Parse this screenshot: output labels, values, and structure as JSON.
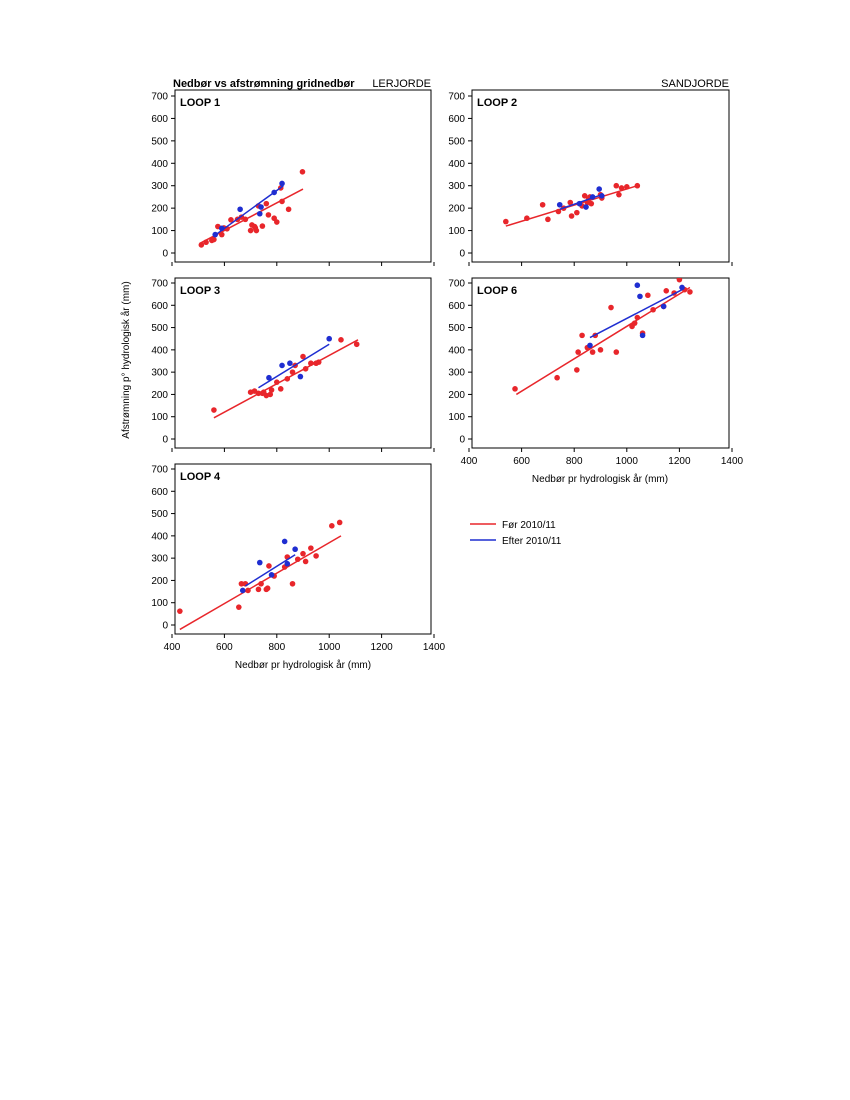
{
  "figure": {
    "title": "Nedbør vs afstrømning gridnedbør",
    "left_header": "LERJORDE",
    "right_header": "SANDJORDE",
    "ylabel": "Afstrømning p° hydrologisk år (mm)",
    "xlabel": "Nedbør pr hydrologisk år (mm)"
  },
  "legend": {
    "before": "Før 2010/11",
    "after": "Efter 2010/11"
  },
  "colors": {
    "before": "#e8262b",
    "after": "#1f2ed1"
  },
  "chart_data": [
    {
      "type": "scatter",
      "title": "LOOP 1",
      "xlim": [
        400,
        1400
      ],
      "ylim": [
        0,
        700
      ],
      "xticks": [
        400,
        600,
        800,
        1000,
        1200,
        1400
      ],
      "yticks": [
        0,
        100,
        200,
        300,
        400,
        500,
        600,
        700
      ],
      "show_xticklabels": false,
      "series": [
        {
          "name": "Før 2010/11",
          "points": [
            [
              512,
              36
            ],
            [
              530,
              48
            ],
            [
              552,
              56
            ],
            [
              560,
              60
            ],
            [
              575,
              118
            ],
            [
              590,
              82
            ],
            [
              598,
              112
            ],
            [
              610,
              108
            ],
            [
              625,
              148
            ],
            [
              650,
              150
            ],
            [
              665,
              160
            ],
            [
              680,
              150
            ],
            [
              700,
              100
            ],
            [
              705,
              125
            ],
            [
              715,
              118
            ],
            [
              718,
              112
            ],
            [
              722,
              100
            ],
            [
              730,
              210
            ],
            [
              745,
              120
            ],
            [
              760,
              220
            ],
            [
              768,
              170
            ],
            [
              790,
              155
            ],
            [
              800,
              138
            ],
            [
              815,
              290
            ],
            [
              820,
              230
            ],
            [
              845,
              195
            ],
            [
              898,
              362
            ]
          ],
          "fit": [
            [
              505,
              42
            ],
            [
              900,
              285
            ]
          ]
        },
        {
          "name": "Efter 2010/11",
          "points": [
            [
              565,
              82
            ],
            [
              590,
              110
            ],
            [
              660,
              195
            ],
            [
              735,
              175
            ],
            [
              740,
              205
            ],
            [
              790,
              270
            ],
            [
              820,
              310
            ]
          ],
          "fit": [
            [
              565,
              80
            ],
            [
              825,
              300
            ]
          ]
        }
      ]
    },
    {
      "type": "scatter",
      "title": "LOOP 2",
      "xlim": [
        400,
        1400
      ],
      "ylim": [
        0,
        700
      ],
      "xticks": [
        400,
        600,
        800,
        1000,
        1200,
        1400
      ],
      "yticks": [
        0,
        100,
        200,
        300,
        400,
        500,
        600,
        700
      ],
      "show_xticklabels": false,
      "series": [
        {
          "name": "Før 2010/11",
          "points": [
            [
              540,
              140
            ],
            [
              620,
              155
            ],
            [
              680,
              215
            ],
            [
              700,
              150
            ],
            [
              740,
              185
            ],
            [
              760,
              200
            ],
            [
              785,
              225
            ],
            [
              790,
              165
            ],
            [
              810,
              180
            ],
            [
              830,
              210
            ],
            [
              840,
              255
            ],
            [
              850,
              225
            ],
            [
              855,
              240
            ],
            [
              860,
              250
            ],
            [
              865,
              220
            ],
            [
              900,
              260
            ],
            [
              905,
              245
            ],
            [
              960,
              300
            ],
            [
              970,
              260
            ],
            [
              980,
              290
            ],
            [
              1000,
              295
            ],
            [
              1040,
              300
            ]
          ],
          "fit": [
            [
              540,
              120
            ],
            [
              1040,
              300
            ]
          ]
        },
        {
          "name": "Efter 2010/11",
          "points": [
            [
              745,
              215
            ],
            [
              820,
              220
            ],
            [
              845,
              205
            ],
            [
              870,
              250
            ],
            [
              895,
              285
            ],
            [
              905,
              255
            ]
          ],
          "fit": [
            [
              745,
              195
            ],
            [
              905,
              260
            ]
          ]
        }
      ]
    },
    {
      "type": "scatter",
      "title": "LOOP 3",
      "xlim": [
        400,
        1400
      ],
      "ylim": [
        0,
        700
      ],
      "xticks": [
        400,
        600,
        800,
        1000,
        1200,
        1400
      ],
      "yticks": [
        0,
        100,
        200,
        300,
        400,
        500,
        600,
        700
      ],
      "show_xticklabels": false,
      "series": [
        {
          "name": "Før 2010/11",
          "points": [
            [
              560,
              130
            ],
            [
              700,
              210
            ],
            [
              715,
              215
            ],
            [
              730,
              205
            ],
            [
              745,
              205
            ],
            [
              750,
              210
            ],
            [
              760,
              195
            ],
            [
              775,
              200
            ],
            [
              780,
              220
            ],
            [
              800,
              255
            ],
            [
              815,
              225
            ],
            [
              840,
              270
            ],
            [
              860,
              300
            ],
            [
              870,
              330
            ],
            [
              900,
              370
            ],
            [
              910,
              315
            ],
            [
              930,
              340
            ],
            [
              950,
              340
            ],
            [
              960,
              345
            ],
            [
              1045,
              445
            ],
            [
              1105,
              425
            ]
          ],
          "fit": [
            [
              560,
              95
            ],
            [
              1110,
              445
            ]
          ]
        },
        {
          "name": "Efter 2010/11",
          "points": [
            [
              770,
              275
            ],
            [
              820,
              330
            ],
            [
              850,
              340
            ],
            [
              890,
              280
            ],
            [
              1000,
              450
            ]
          ],
          "fit": [
            [
              730,
              230
            ],
            [
              1000,
              425
            ]
          ]
        }
      ]
    },
    {
      "type": "scatter",
      "title": "LOOP 6",
      "xlim": [
        400,
        1400
      ],
      "ylim": [
        0,
        700
      ],
      "xticks": [
        400,
        600,
        800,
        1000,
        1200,
        1400
      ],
      "yticks": [
        0,
        100,
        200,
        300,
        400,
        500,
        600,
        700
      ],
      "show_xticklabels": true,
      "series": [
        {
          "name": "Før 2010/11",
          "points": [
            [
              575,
              225
            ],
            [
              735,
              275
            ],
            [
              810,
              310
            ],
            [
              815,
              390
            ],
            [
              830,
              465
            ],
            [
              850,
              410
            ],
            [
              870,
              390
            ],
            [
              880,
              465
            ],
            [
              900,
              400
            ],
            [
              940,
              590
            ],
            [
              960,
              390
            ],
            [
              1020,
              505
            ],
            [
              1030,
              520
            ],
            [
              1040,
              545
            ],
            [
              1060,
              475
            ],
            [
              1080,
              645
            ],
            [
              1100,
              580
            ],
            [
              1140,
              595
            ],
            [
              1150,
              665
            ],
            [
              1180,
              655
            ],
            [
              1200,
              715
            ],
            [
              1220,
              670
            ],
            [
              1240,
              660
            ]
          ],
          "fit": [
            [
              580,
              200
            ],
            [
              1240,
              680
            ]
          ]
        },
        {
          "name": "Efter 2010/11",
          "points": [
            [
              860,
              420
            ],
            [
              1040,
              690
            ],
            [
              1050,
              640
            ],
            [
              1060,
              465
            ],
            [
              1140,
              595
            ],
            [
              1210,
              680
            ]
          ],
          "fit": [
            [
              860,
              455
            ],
            [
              1210,
              670
            ]
          ]
        }
      ]
    },
    {
      "type": "scatter",
      "title": "LOOP 4",
      "xlim": [
        400,
        1400
      ],
      "ylim": [
        0,
        700
      ],
      "xticks": [
        400,
        600,
        800,
        1000,
        1200,
        1400
      ],
      "yticks": [
        0,
        100,
        200,
        300,
        400,
        500,
        600,
        700
      ],
      "show_xticklabels": true,
      "series": [
        {
          "name": "Før 2010/11",
          "points": [
            [
              430,
              62
            ],
            [
              655,
              80
            ],
            [
              665,
              185
            ],
            [
              680,
              185
            ],
            [
              690,
              155
            ],
            [
              730,
              160
            ],
            [
              740,
              185
            ],
            [
              760,
              160
            ],
            [
              765,
              165
            ],
            [
              770,
              265
            ],
            [
              790,
              220
            ],
            [
              830,
              260
            ],
            [
              840,
              305
            ],
            [
              860,
              185
            ],
            [
              880,
              295
            ],
            [
              900,
              320
            ],
            [
              910,
              285
            ],
            [
              930,
              345
            ],
            [
              950,
              310
            ],
            [
              1010,
              445
            ],
            [
              1040,
              460
            ]
          ],
          "fit": [
            [
              430,
              -20
            ],
            [
              1045,
              400
            ]
          ]
        },
        {
          "name": "Efter 2010/11",
          "points": [
            [
              670,
              155
            ],
            [
              735,
              280
            ],
            [
              780,
              225
            ],
            [
              830,
              375
            ],
            [
              840,
              275
            ],
            [
              870,
              340
            ]
          ],
          "fit": [
            [
              680,
              175
            ],
            [
              870,
              315
            ]
          ]
        }
      ]
    }
  ]
}
